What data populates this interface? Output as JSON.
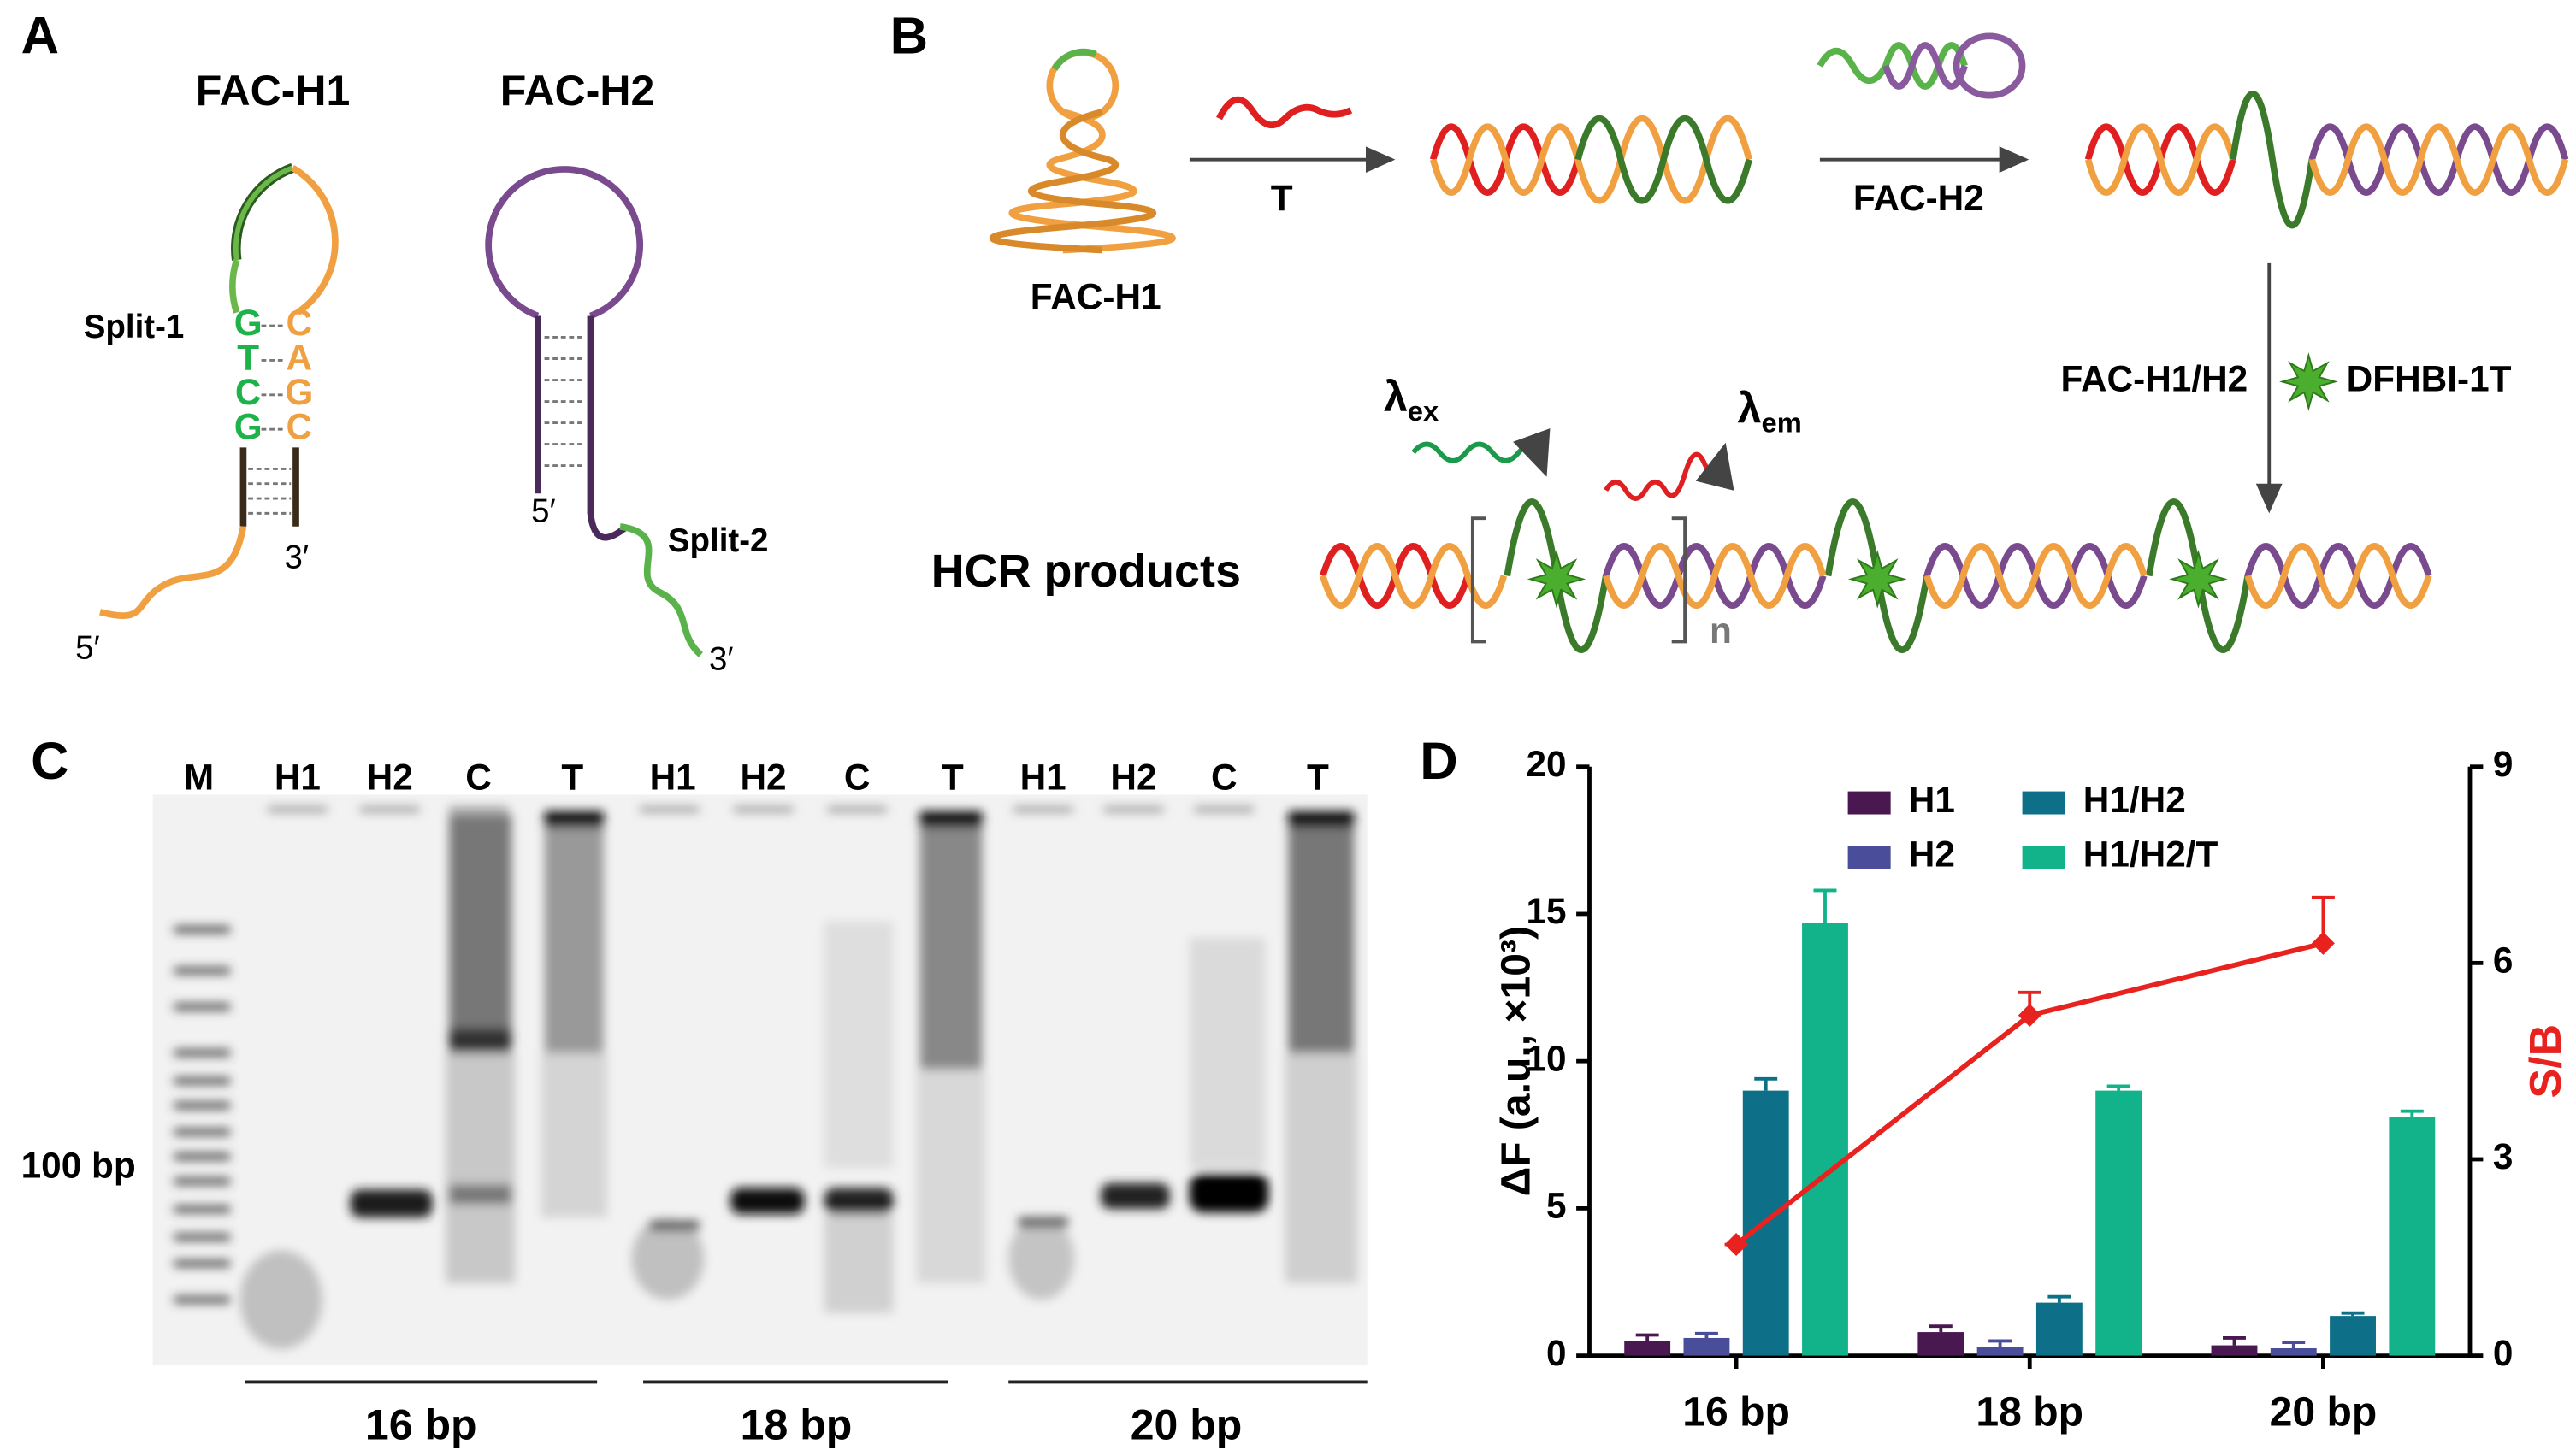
{
  "panel_a": {
    "label": "A",
    "hairpins": [
      {
        "name": "FAC-H1",
        "split": "Split-1",
        "stem_left": [
          "G",
          "T",
          "C",
          "G"
        ],
        "stem_right": [
          "C",
          "A",
          "G",
          "C"
        ],
        "end_5": "5′",
        "end_3": "3′"
      },
      {
        "name": "FAC-H2",
        "split": "Split-2",
        "end_5": "5′",
        "end_3": "3′"
      }
    ]
  },
  "panel_b": {
    "label": "B",
    "hairpin": "FAC-H1",
    "target": "T",
    "second_hairpin": "FAC-H2",
    "step3": "FAC-H1/H2",
    "dye": "DFHBI-1T",
    "excitation": "λ",
    "excitation_sub": "ex",
    "emission": "λ",
    "emission_sub": "em",
    "product": "HCR products",
    "repeat": "n"
  },
  "panel_c": {
    "label": "C",
    "lanes": [
      "M",
      "H1",
      "H2",
      "C",
      "T",
      "H1",
      "H2",
      "C",
      "T",
      "H1",
      "H2",
      "C",
      "T"
    ],
    "marker": "100 bp",
    "groups": [
      "16 bp",
      "18 bp",
      "20 bp"
    ]
  },
  "chart_data": {
    "type": "bar",
    "label": "D",
    "categories": [
      "16 bp",
      "18 bp",
      "20 bp"
    ],
    "ylabel": "ΔF (a.u., ×10³)",
    "y2label": "S/B",
    "ylim": [
      0,
      20
    ],
    "yticks": [
      0,
      5,
      10,
      15,
      20
    ],
    "y2lim": [
      0,
      9
    ],
    "y2ticks": [
      0,
      3,
      6,
      9
    ],
    "series": [
      {
        "name": "H1",
        "color": "#4a1850",
        "values": [
          0.5,
          0.8,
          0.35
        ],
        "errors": [
          0.2,
          0.2,
          0.25
        ]
      },
      {
        "name": "H2",
        "color": "#4a4e9a",
        "values": [
          0.6,
          0.3,
          0.25
        ],
        "errors": [
          0.15,
          0.2,
          0.2
        ]
      },
      {
        "name": "H1/H2",
        "color": "#0e7088",
        "values": [
          9.0,
          1.8,
          1.35
        ],
        "errors": [
          0.4,
          0.2,
          0.1
        ]
      },
      {
        "name": "H1/H2/T",
        "color": "#12b38a",
        "values": [
          14.7,
          9.0,
          8.1
        ],
        "errors": [
          1.1,
          0.15,
          0.2
        ]
      },
      {
        "type": "line",
        "axis": "y2",
        "color": "#e8221f",
        "values": [
          1.7,
          5.2,
          6.3
        ],
        "errors": [
          0,
          0.35,
          0.7
        ]
      }
    ]
  }
}
